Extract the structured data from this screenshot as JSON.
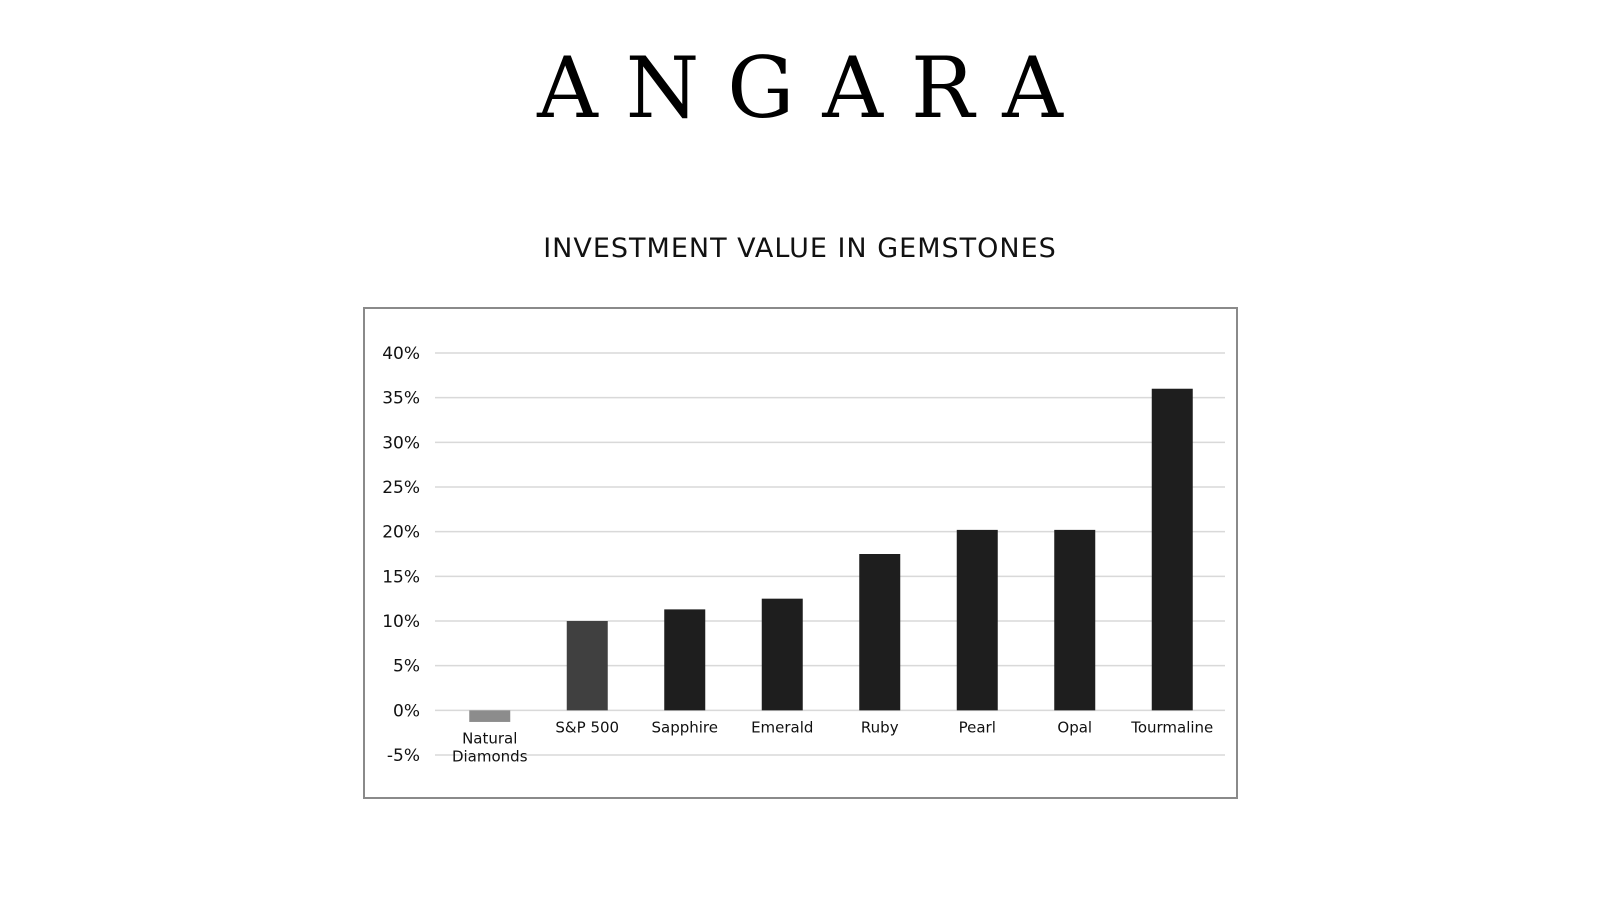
{
  "brand": {
    "name": "ANGARA"
  },
  "chart_data": {
    "type": "bar",
    "title": "INVESTMENT VALUE IN GEMSTONES",
    "xlabel": "",
    "ylabel": "",
    "categories": [
      "Natural Diamonds",
      "S&P 500",
      "Sapphire",
      "Emerald",
      "Ruby",
      "Pearl",
      "Opal",
      "Tourmaline"
    ],
    "values": [
      -1.3,
      10,
      11.3,
      12.5,
      17.5,
      20.2,
      20.2,
      36
    ],
    "bar_colors": [
      "#8c8c8c",
      "#404040",
      "#1e1e1e",
      "#1e1e1e",
      "#1e1e1e",
      "#1e1e1e",
      "#1e1e1e",
      "#1e1e1e"
    ],
    "ylim": [
      -5,
      40
    ],
    "yticks": [
      40,
      35,
      30,
      25,
      20,
      15,
      10,
      5,
      0,
      -5
    ],
    "ytick_labels": [
      "40%",
      "35%",
      "30%",
      "25%",
      "20%",
      "15%",
      "10%",
      "5%",
      "0%",
      "-5%"
    ],
    "grid": true,
    "legend": "none"
  }
}
